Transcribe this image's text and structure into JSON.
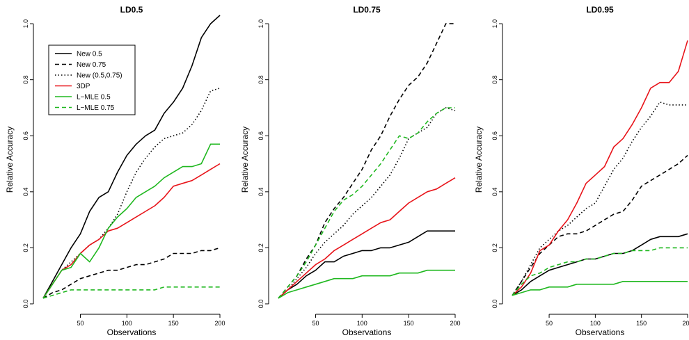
{
  "chart_data": [
    {
      "type": "line",
      "title": "LD0.5",
      "xlabel": "Observations",
      "ylabel": "Relative Accuracy",
      "xlim": [
        10,
        200
      ],
      "ylim": [
        0,
        1.03
      ],
      "xticks": [
        50,
        100,
        150,
        200
      ],
      "yticks": [
        0.0,
        0.2,
        0.4,
        0.6,
        0.8,
        1.0
      ],
      "xtick_labels": [
        "50",
        "100",
        "150",
        "200"
      ],
      "ytick_labels": [
        "0.0",
        "0.2",
        "0.4",
        "0.6",
        "0.8",
        "1.0"
      ],
      "grid": false,
      "legend": {
        "placement": "top-left",
        "entries": [
          "New 0.5",
          "New 0.75",
          "New (0.5,0.75)",
          "3DP",
          "L−MLE 0.5",
          "L−MLE 0.75"
        ]
      },
      "x": [
        10,
        20,
        30,
        40,
        50,
        60,
        70,
        80,
        90,
        100,
        110,
        120,
        130,
        140,
        150,
        160,
        170,
        180,
        190,
        200
      ],
      "series": [
        {
          "name": "New 0.5",
          "color": "#000000",
          "dash": "solid",
          "values": [
            0.02,
            0.08,
            0.14,
            0.2,
            0.25,
            0.33,
            0.38,
            0.4,
            0.47,
            0.53,
            0.57,
            0.6,
            0.62,
            0.68,
            0.72,
            0.77,
            0.85,
            0.95,
            1.0,
            1.03
          ]
        },
        {
          "name": "New 0.75",
          "color": "#000000",
          "dash": "dashed",
          "values": [
            0.02,
            0.04,
            0.05,
            0.07,
            0.09,
            0.1,
            0.11,
            0.12,
            0.12,
            0.13,
            0.14,
            0.14,
            0.15,
            0.16,
            0.18,
            0.18,
            0.18,
            0.19,
            0.19,
            0.2
          ]
        },
        {
          "name": "New (0.5,0.75)",
          "color": "#000000",
          "dash": "dotted",
          "values": [
            0.02,
            0.07,
            0.12,
            0.15,
            0.18,
            0.21,
            0.23,
            0.27,
            0.32,
            0.4,
            0.47,
            0.52,
            0.56,
            0.59,
            0.6,
            0.61,
            0.64,
            0.69,
            0.76,
            0.77
          ]
        },
        {
          "name": "3DP",
          "color": "#e8141a",
          "dash": "solid",
          "values": [
            0.02,
            0.07,
            0.12,
            0.14,
            0.18,
            0.21,
            0.23,
            0.26,
            0.27,
            0.29,
            0.31,
            0.33,
            0.35,
            0.38,
            0.42,
            0.43,
            0.44,
            0.46,
            0.48,
            0.5
          ]
        },
        {
          "name": "L−MLE 0.5",
          "color": "#20b820",
          "dash": "solid",
          "values": [
            0.02,
            0.07,
            0.12,
            0.13,
            0.18,
            0.15,
            0.2,
            0.27,
            0.31,
            0.34,
            0.38,
            0.4,
            0.42,
            0.45,
            0.47,
            0.49,
            0.49,
            0.5,
            0.57,
            0.57
          ]
        },
        {
          "name": "L−MLE 0.75",
          "color": "#20b820",
          "dash": "dashed",
          "values": [
            0.02,
            0.03,
            0.04,
            0.05,
            0.05,
            0.05,
            0.05,
            0.05,
            0.05,
            0.05,
            0.05,
            0.05,
            0.05,
            0.06,
            0.06,
            0.06,
            0.06,
            0.06,
            0.06,
            0.06
          ]
        }
      ]
    },
    {
      "type": "line",
      "title": "LD0.75",
      "xlabel": "Observations",
      "ylabel": "Relative Accuracy",
      "xlim": [
        10,
        200
      ],
      "ylim": [
        0,
        1.03
      ],
      "xticks": [
        50,
        100,
        150,
        200
      ],
      "yticks": [
        0.0,
        0.2,
        0.4,
        0.6,
        0.8,
        1.0
      ],
      "xtick_labels": [
        "50",
        "100",
        "150",
        "200"
      ],
      "ytick_labels": [
        "0.0",
        "0.2",
        "0.4",
        "0.6",
        "0.8",
        "1.0"
      ],
      "grid": false,
      "x": [
        10,
        20,
        30,
        40,
        50,
        60,
        70,
        80,
        90,
        100,
        110,
        120,
        130,
        140,
        150,
        160,
        170,
        180,
        190,
        200
      ],
      "series": [
        {
          "name": "New 0.5",
          "color": "#000000",
          "dash": "solid",
          "values": [
            0.02,
            0.05,
            0.07,
            0.1,
            0.12,
            0.15,
            0.15,
            0.17,
            0.18,
            0.19,
            0.19,
            0.2,
            0.2,
            0.21,
            0.22,
            0.24,
            0.26,
            0.26,
            0.26,
            0.26
          ]
        },
        {
          "name": "New 0.75",
          "color": "#000000",
          "dash": "dashed",
          "values": [
            0.02,
            0.06,
            0.1,
            0.16,
            0.21,
            0.29,
            0.34,
            0.38,
            0.43,
            0.48,
            0.55,
            0.6,
            0.67,
            0.73,
            0.78,
            0.81,
            0.86,
            0.93,
            1.0,
            1.0
          ]
        },
        {
          "name": "New (0.5,0.75)",
          "color": "#000000",
          "dash": "dotted",
          "values": [
            0.02,
            0.05,
            0.09,
            0.13,
            0.18,
            0.22,
            0.25,
            0.28,
            0.32,
            0.35,
            0.38,
            0.42,
            0.46,
            0.52,
            0.59,
            0.61,
            0.63,
            0.68,
            0.7,
            0.69
          ]
        },
        {
          "name": "3DP",
          "color": "#e8141a",
          "dash": "solid",
          "values": [
            0.02,
            0.05,
            0.08,
            0.11,
            0.14,
            0.16,
            0.19,
            0.21,
            0.23,
            0.25,
            0.27,
            0.29,
            0.3,
            0.33,
            0.36,
            0.38,
            0.4,
            0.41,
            0.43,
            0.45
          ]
        },
        {
          "name": "L−MLE 0.5",
          "color": "#20b820",
          "dash": "solid",
          "values": [
            0.02,
            0.04,
            0.05,
            0.06,
            0.07,
            0.08,
            0.09,
            0.09,
            0.09,
            0.1,
            0.1,
            0.1,
            0.1,
            0.11,
            0.11,
            0.11,
            0.12,
            0.12,
            0.12,
            0.12
          ]
        },
        {
          "name": "L−MLE 0.75",
          "color": "#20b820",
          "dash": "dashed",
          "values": [
            0.02,
            0.06,
            0.1,
            0.15,
            0.21,
            0.27,
            0.33,
            0.37,
            0.39,
            0.42,
            0.46,
            0.5,
            0.55,
            0.6,
            0.59,
            0.61,
            0.65,
            0.68,
            0.7,
            0.7
          ]
        }
      ]
    },
    {
      "type": "line",
      "title": "LD0.95",
      "xlabel": "Observations",
      "ylabel": "Relative Accuracy",
      "xlim": [
        10,
        200
      ],
      "ylim": [
        0,
        1.03
      ],
      "xticks": [
        50,
        100,
        150,
        200
      ],
      "yticks": [
        0.0,
        0.2,
        0.4,
        0.6,
        0.8,
        1.0
      ],
      "xtick_labels": [
        "50",
        "100",
        "150",
        "200"
      ],
      "ytick_labels": [
        "0.0",
        "0.2",
        "0.4",
        "0.6",
        "0.8",
        "1.0"
      ],
      "grid": false,
      "x": [
        10,
        20,
        30,
        40,
        50,
        60,
        70,
        80,
        90,
        100,
        110,
        120,
        130,
        140,
        150,
        160,
        170,
        180,
        190,
        200
      ],
      "series": [
        {
          "name": "New 0.5",
          "color": "#000000",
          "dash": "solid",
          "values": [
            0.03,
            0.05,
            0.08,
            0.1,
            0.12,
            0.13,
            0.14,
            0.15,
            0.16,
            0.16,
            0.17,
            0.18,
            0.18,
            0.19,
            0.21,
            0.23,
            0.24,
            0.24,
            0.24,
            0.25
          ]
        },
        {
          "name": "New 0.75",
          "color": "#000000",
          "dash": "dashed",
          "values": [
            0.03,
            0.08,
            0.13,
            0.18,
            0.21,
            0.24,
            0.25,
            0.25,
            0.26,
            0.28,
            0.3,
            0.32,
            0.33,
            0.37,
            0.42,
            0.44,
            0.46,
            0.48,
            0.5,
            0.53
          ]
        },
        {
          "name": "New (0.5,0.75)",
          "color": "#000000",
          "dash": "dotted",
          "values": [
            0.03,
            0.08,
            0.14,
            0.2,
            0.23,
            0.26,
            0.28,
            0.31,
            0.34,
            0.36,
            0.42,
            0.48,
            0.52,
            0.58,
            0.63,
            0.67,
            0.72,
            0.71,
            0.71,
            0.71
          ]
        },
        {
          "name": "3DP",
          "color": "#e8141a",
          "dash": "solid",
          "values": [
            0.03,
            0.06,
            0.11,
            0.19,
            0.21,
            0.26,
            0.3,
            0.36,
            0.43,
            0.46,
            0.49,
            0.56,
            0.59,
            0.64,
            0.7,
            0.77,
            0.79,
            0.79,
            0.83,
            0.94
          ]
        },
        {
          "name": "L−MLE 0.5",
          "color": "#20b820",
          "dash": "solid",
          "values": [
            0.03,
            0.04,
            0.05,
            0.05,
            0.06,
            0.06,
            0.06,
            0.07,
            0.07,
            0.07,
            0.07,
            0.07,
            0.08,
            0.08,
            0.08,
            0.08,
            0.08,
            0.08,
            0.08,
            0.08
          ]
        },
        {
          "name": "L−MLE 0.75",
          "color": "#20b820",
          "dash": "dashed",
          "values": [
            0.03,
            0.07,
            0.1,
            0.11,
            0.13,
            0.14,
            0.15,
            0.15,
            0.16,
            0.16,
            0.17,
            0.18,
            0.18,
            0.19,
            0.19,
            0.19,
            0.2,
            0.2,
            0.2,
            0.2
          ]
        }
      ]
    }
  ]
}
